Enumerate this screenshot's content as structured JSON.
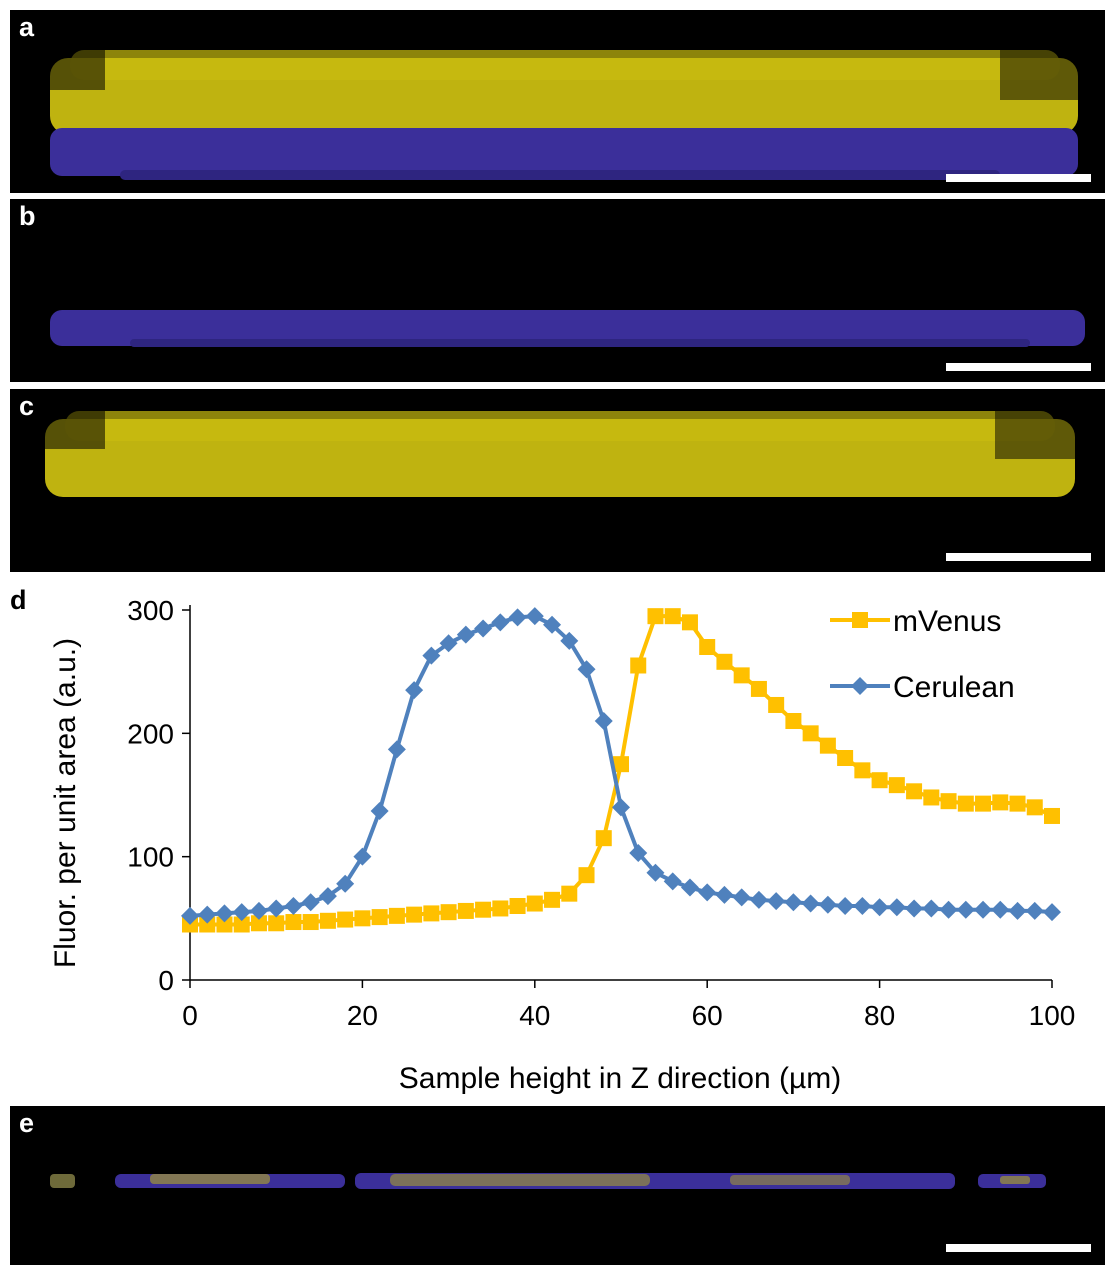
{
  "panels": [
    {
      "letter": "a",
      "content": "merged"
    },
    {
      "letter": "b",
      "content": "cerulean"
    },
    {
      "letter": "c",
      "content": "mvenus"
    },
    {
      "letter": "d",
      "content": "chart"
    },
    {
      "letter": "e",
      "content": "mixed"
    }
  ],
  "colors": {
    "yellow_cells": "#d9cc12",
    "blue_cells": "#3b2f9a",
    "mvenus_series": "#ffc000",
    "cerulean_series": "#4f81bd",
    "panel_background": "#000000",
    "scale_bar": "#ffffff"
  },
  "chart_data": {
    "type": "line",
    "xlabel": "Sample height in Z direction (µm)",
    "ylabel": "Fluor. per unit area (a.u.)",
    "xlim": [
      0,
      100
    ],
    "ylim": [
      0,
      300
    ],
    "xticks": [
      0,
      20,
      40,
      60,
      80,
      100
    ],
    "yticks": [
      0,
      100,
      200,
      300
    ],
    "grid": false,
    "legend": "top-right",
    "x": [
      0,
      2,
      4,
      6,
      8,
      10,
      12,
      14,
      16,
      18,
      20,
      22,
      24,
      26,
      28,
      30,
      32,
      34,
      36,
      38,
      40,
      42,
      44,
      46,
      48,
      50,
      52,
      54,
      56,
      58,
      60,
      62,
      64,
      66,
      68,
      70,
      72,
      74,
      76,
      78,
      80,
      82,
      84,
      86,
      88,
      90,
      92,
      94,
      96,
      98,
      100
    ],
    "series": [
      {
        "name": "mVenus",
        "color": "#ffc000",
        "marker": "square",
        "values": [
          45,
          45,
          45,
          45,
          46,
          46,
          47,
          47,
          48,
          49,
          50,
          51,
          52,
          53,
          54,
          55,
          56,
          57,
          58,
          60,
          62,
          65,
          70,
          85,
          115,
          175,
          255,
          295,
          295,
          290,
          270,
          258,
          247,
          236,
          223,
          210,
          200,
          190,
          180,
          170,
          162,
          158,
          153,
          148,
          145,
          143,
          143,
          144,
          143,
          140,
          133
        ]
      },
      {
        "name": "Cerulean",
        "color": "#4f81bd",
        "marker": "diamond",
        "values": [
          52,
          53,
          54,
          55,
          56,
          58,
          60,
          63,
          68,
          78,
          100,
          137,
          187,
          235,
          263,
          273,
          280,
          285,
          290,
          294,
          295,
          288,
          275,
          252,
          210,
          140,
          103,
          87,
          80,
          75,
          71,
          69,
          67,
          65,
          64,
          63,
          62,
          61,
          60,
          60,
          59,
          59,
          58,
          58,
          57,
          57,
          57,
          57,
          56,
          56,
          55
        ]
      }
    ]
  }
}
